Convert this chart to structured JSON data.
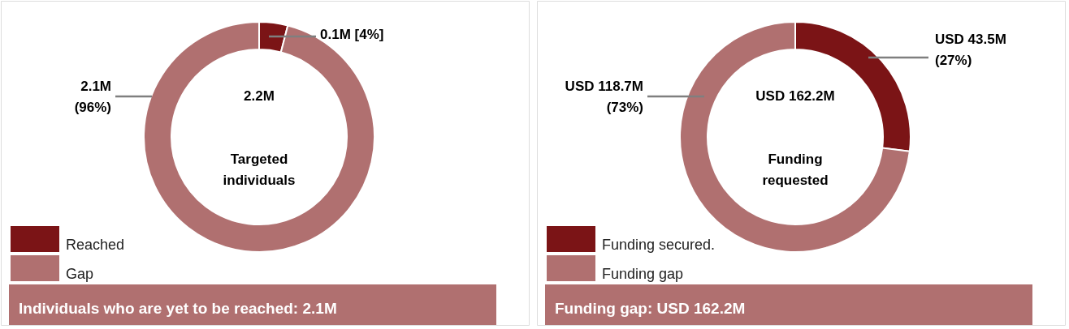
{
  "chart_data": [
    {
      "type": "donut",
      "categories": [
        "Reached",
        "Gap"
      ],
      "values": [
        4,
        96
      ],
      "colors": [
        "#7b1416",
        "#b07070"
      ],
      "value_labels": [
        "0.1M [4%]",
        "2.1M\n(96%)"
      ],
      "legend": "bottom left",
      "annotations": [
        "2.2M",
        "Targeted\nindividuals",
        "Individuals who are yet to be reached: 2.1M"
      ]
    },
    {
      "type": "donut",
      "categories": [
        "Funding secured.",
        "Funding gap"
      ],
      "values": [
        27,
        73
      ],
      "colors": [
        "#7b1416",
        "#b07070"
      ],
      "value_labels": [
        "USD  43.5M\n(27%)",
        "USD 118.7M\n(73%)"
      ],
      "legend": "bottom left",
      "annotations": [
        "USD 162.2M",
        "Funding\nrequested",
        "Funding gap: USD 162.2M"
      ]
    }
  ]
}
